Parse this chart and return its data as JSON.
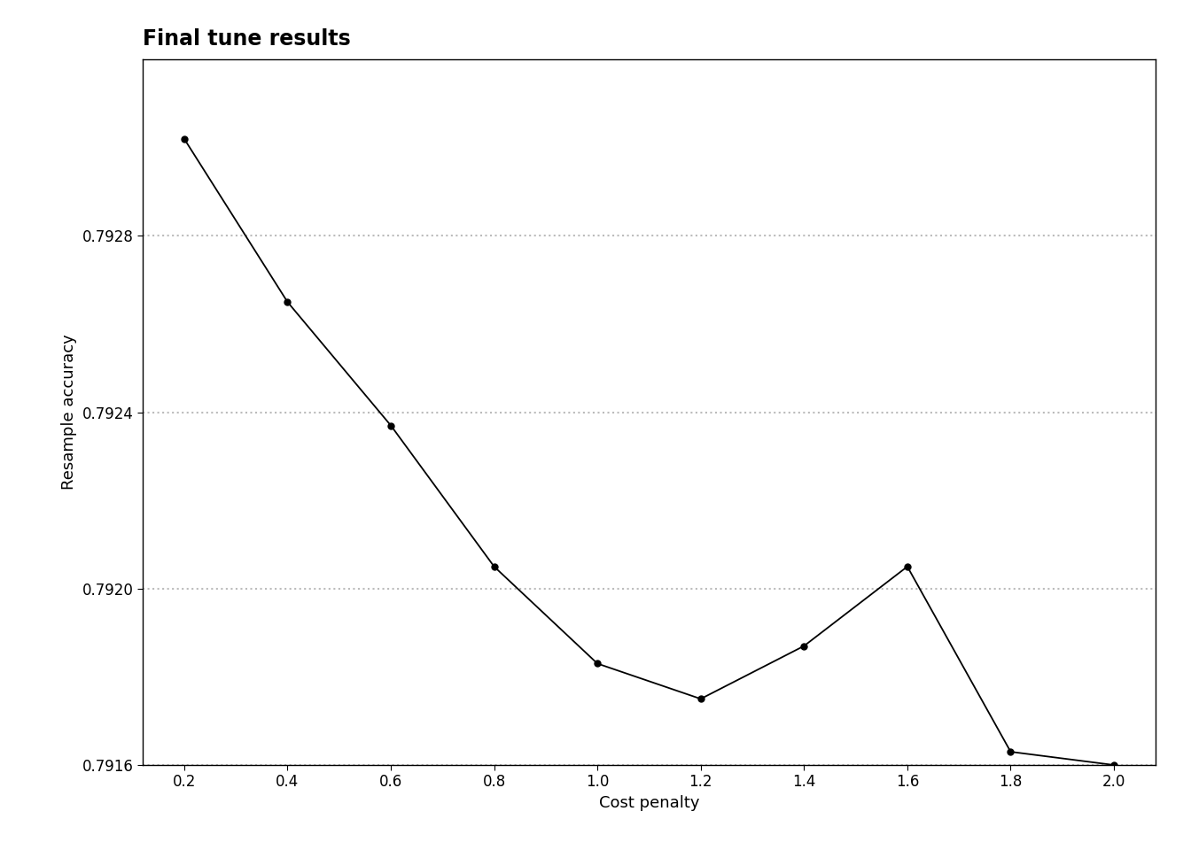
{
  "title": "Final tune results",
  "xlabel": "Cost penalty",
  "ylabel": "Resample accuracy",
  "x": [
    0.2,
    0.4,
    0.6,
    0.8,
    1.0,
    1.2,
    1.4,
    1.6,
    1.8,
    2.0
  ],
  "y": [
    0.79302,
    0.79265,
    0.79237,
    0.79205,
    0.79183,
    0.79175,
    0.79187,
    0.79205,
    0.79163,
    0.7916
  ],
  "ylim": [
    0.7916,
    0.7932
  ],
  "yticks": [
    0.7916,
    0.792,
    0.7924,
    0.7928
  ],
  "xticks": [
    0.2,
    0.4,
    0.6,
    0.8,
    1.0,
    1.2,
    1.4,
    1.6,
    1.8,
    2.0
  ],
  "line_color": "#000000",
  "marker_color": "#000000",
  "marker_size": 5,
  "line_width": 1.3,
  "grid_color": "#bbbbbb",
  "background_color": "#ffffff",
  "title_fontsize": 17,
  "label_fontsize": 13,
  "tick_fontsize": 12
}
